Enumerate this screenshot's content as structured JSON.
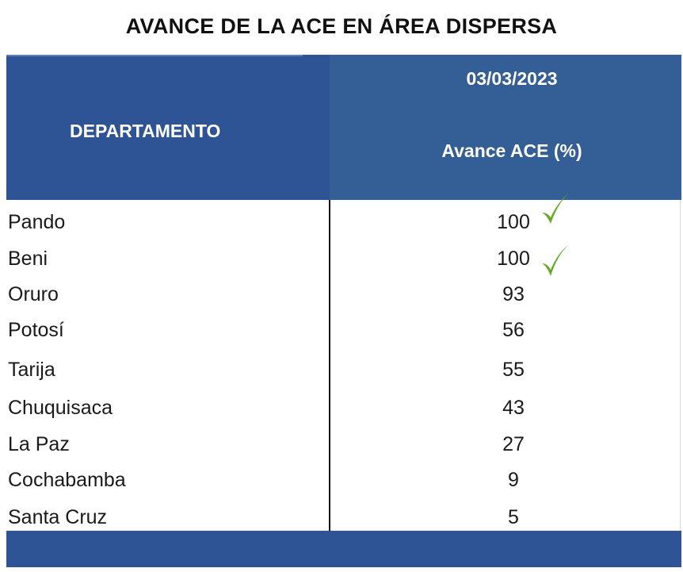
{
  "title": "AVANCE DE LA ACE EN ÁREA DISPERSA",
  "header": {
    "department": "DEPARTAMENTO",
    "date": "03/03/2023",
    "metric": "Avance ACE (%)"
  },
  "rows": [
    {
      "department": "Pando",
      "value": "100",
      "check": true
    },
    {
      "department": "Beni",
      "value": "100",
      "check": true
    },
    {
      "department": "Oruro",
      "value": "93"
    },
    {
      "department": "Potosí",
      "value": "56"
    },
    {
      "department": "Tarija",
      "value": "55"
    },
    {
      "department": "Chuquisaca",
      "value": "43"
    },
    {
      "department": "La Paz",
      "value": "27"
    },
    {
      "department": "Cochabamba",
      "value": "9"
    },
    {
      "department": "Santa Cruz",
      "value": "5"
    }
  ],
  "colors": {
    "header_left": "#2f5496",
    "header_right": "#335e96",
    "check": "#6aaa2a"
  },
  "icons": {
    "check": "check-mark-icon"
  }
}
